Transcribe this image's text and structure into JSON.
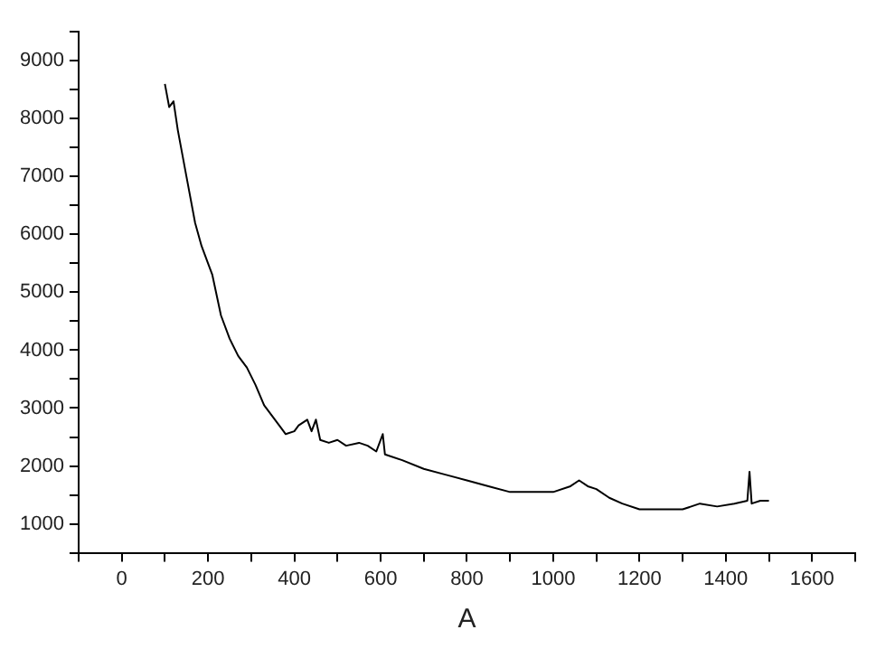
{
  "chart_data": {
    "type": "line",
    "xlabel": "A",
    "x": [
      100,
      110,
      120,
      130,
      150,
      170,
      185,
      200,
      210,
      230,
      250,
      270,
      290,
      310,
      330,
      350,
      370,
      380,
      400,
      410,
      430,
      440,
      450,
      460,
      480,
      500,
      520,
      550,
      570,
      590,
      605,
      610,
      650,
      700,
      750,
      800,
      850,
      900,
      950,
      1000,
      1040,
      1060,
      1080,
      1100,
      1130,
      1160,
      1200,
      1250,
      1300,
      1340,
      1380,
      1420,
      1450,
      1455,
      1460,
      1480,
      1500
    ],
    "series": [
      {
        "color": "#000000",
        "values": [
          8600,
          8200,
          8300,
          7800,
          7000,
          6200,
          5800,
          5500,
          5300,
          4600,
          4200,
          3900,
          3700,
          3400,
          3050,
          2850,
          2650,
          2550,
          2600,
          2700,
          2800,
          2600,
          2800,
          2450,
          2400,
          2450,
          2350,
          2400,
          2350,
          2250,
          2550,
          2200,
          2100,
          1950,
          1850,
          1750,
          1650,
          1550,
          1550,
          1550,
          1650,
          1750,
          1650,
          1600,
          1450,
          1350,
          1250,
          1250,
          1250,
          1350,
          1300,
          1350,
          1400,
          1900,
          1350,
          1400,
          1400
        ]
      }
    ],
    "xlim": [
      -100,
      1700
    ],
    "xticks": [
      {
        "value": -100,
        "label": null
      },
      0,
      {
        "value": 100,
        "label": null
      },
      200,
      {
        "value": 300,
        "label": null
      },
      400,
      {
        "value": 500,
        "label": null
      },
      600,
      {
        "value": 700,
        "label": null
      },
      800,
      {
        "value": 900,
        "label": null
      },
      1000,
      {
        "value": 1100,
        "label": null
      },
      1200,
      {
        "value": 1300,
        "label": null
      },
      1400,
      {
        "value": 1500,
        "label": null
      },
      1600,
      {
        "value": 1700,
        "label": null
      }
    ],
    "ylim": [
      500,
      9500
    ],
    "yticks": [
      {
        "value": 500,
        "label": null
      },
      1000,
      {
        "value": 1500,
        "label": null
      },
      2000,
      {
        "value": 2500,
        "label": null
      },
      3000,
      {
        "value": 3500,
        "label": null
      },
      4000,
      {
        "value": 4500,
        "label": null
      },
      5000,
      {
        "value": 5500,
        "label": null
      },
      6000,
      {
        "value": 6500,
        "label": null
      },
      7000,
      {
        "value": 7500,
        "label": null
      },
      8000,
      {
        "value": 8500,
        "label": null
      },
      9000,
      {
        "value": 9500,
        "label": null
      }
    ],
    "grid": false,
    "legend": false,
    "marker": "none",
    "line_style": "solid"
  }
}
